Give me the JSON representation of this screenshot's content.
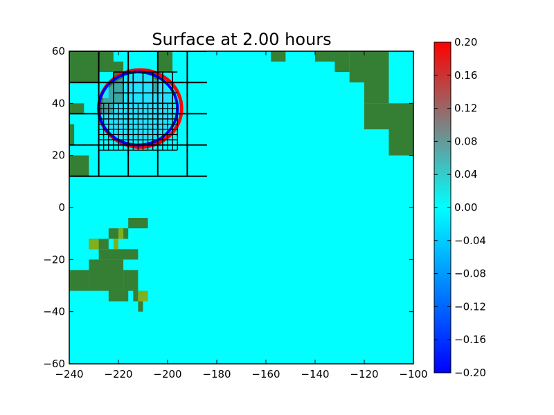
{
  "chart_data": {
    "type": "heatmap",
    "title": "Surface at 2.00 hours",
    "xlabel": "",
    "ylabel": "",
    "xlim": [
      -240,
      -100
    ],
    "ylim": [
      -60,
      60
    ],
    "x_ticks": [
      -240,
      -220,
      -200,
      -180,
      -160,
      -140,
      -120,
      -100
    ],
    "y_ticks": [
      -60,
      -40,
      -20,
      0,
      20,
      40,
      60
    ],
    "x_tick_labels": [
      "−240",
      "−220",
      "−200",
      "−180",
      "−160",
      "−140",
      "−120",
      "−100"
    ],
    "y_tick_labels": [
      "−60",
      "−40",
      "−20",
      "0",
      "20",
      "40",
      "60"
    ],
    "colorbar": {
      "range": [
        -0.2,
        0.2
      ],
      "ticks": [
        0.2,
        0.16,
        0.12,
        0.08,
        0.04,
        0.0,
        -0.04,
        -0.08,
        -0.12,
        -0.16,
        -0.2
      ],
      "tick_labels": [
        "0.20",
        "0.16",
        "0.12",
        "0.08",
        "0.04",
        "0.00",
        "−0.04",
        "−0.08",
        "−0.12",
        "−0.16",
        "−0.20"
      ],
      "colors": [
        {
          "value": -0.2,
          "color": "#0000ff"
        },
        {
          "value": -0.1,
          "color": "#0080ff"
        },
        {
          "value": 0.0,
          "color": "#00ffff"
        },
        {
          "value": 0.1,
          "color": "#808080"
        },
        {
          "value": 0.2,
          "color": "#ff0000"
        }
      ]
    },
    "background_value": 0.0,
    "colors": {
      "ocean": "#00ffff",
      "land": "#357f35",
      "land_light": "#4a9a2a",
      "land_yellow": "#80b020",
      "grid_lines": "#000000",
      "wave_positive": "#ff0000",
      "wave_negative": "#0000ff"
    },
    "land_cells_lonlat": [
      [
        -240,
        48,
        -228,
        60
      ],
      [
        -228,
        52,
        -222,
        60
      ],
      [
        -222,
        48,
        -218,
        56
      ],
      [
        -224,
        40,
        -218,
        48
      ],
      [
        -228,
        36,
        -222,
        42
      ],
      [
        -204,
        52,
        -198,
        60
      ],
      [
        -206,
        44,
        -204,
        52
      ],
      [
        -240,
        36,
        -234,
        40
      ],
      [
        -240,
        24,
        -238,
        32
      ],
      [
        -240,
        12,
        -232,
        20
      ],
      [
        -158,
        56,
        -152,
        60
      ],
      [
        -140,
        56,
        -132,
        60
      ],
      [
        -132,
        52,
        -126,
        60
      ],
      [
        -126,
        48,
        -120,
        60
      ],
      [
        -120,
        40,
        -110,
        60
      ],
      [
        -120,
        30,
        -100,
        40
      ],
      [
        -110,
        20,
        -100,
        32
      ],
      [
        -100,
        30,
        -104,
        40
      ],
      [
        -216,
        -8,
        -208,
        -4
      ],
      [
        -232,
        -16,
        -224,
        -12
      ],
      [
        -228,
        -20,
        -212,
        -16
      ],
      [
        -232,
        -32,
        -218,
        -20
      ],
      [
        -240,
        -32,
        -232,
        -24
      ],
      [
        -218,
        -32,
        -212,
        -24
      ],
      [
        -224,
        -36,
        -216,
        -32
      ],
      [
        -214,
        -36,
        -210,
        -32
      ],
      [
        -212,
        -40,
        -210,
        -36
      ],
      [
        -224,
        -12,
        -216,
        -8
      ]
    ],
    "land_yellow_cells_lonlat": [
      [
        -232,
        -16,
        -228,
        -12
      ],
      [
        -222,
        -16,
        -220,
        -12
      ],
      [
        -220,
        -12,
        -218,
        -8
      ],
      [
        -212,
        -36,
        -208,
        -32
      ]
    ],
    "fine_grid": {
      "lon": [
        -228,
        -196
      ],
      "lat": [
        22,
        40
      ],
      "step": 2
    },
    "coarse_grid": {
      "lon": [
        -240,
        -184
      ],
      "lat": [
        12,
        60
      ],
      "step": 12
    },
    "mid_grid": {
      "lon": [
        -222,
        -196
      ],
      "lat": [
        36,
        52
      ],
      "step": 4
    },
    "wave_front": {
      "center_lon": -212,
      "center_lat": 38,
      "radius_deg": 16
    }
  }
}
